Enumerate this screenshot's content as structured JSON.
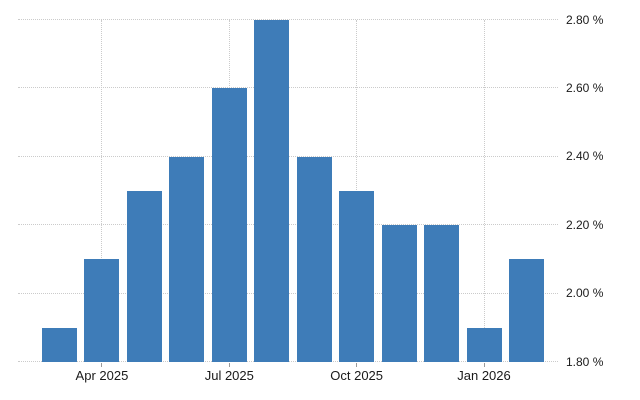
{
  "chart_data": {
    "type": "bar",
    "title": "",
    "values": [
      1.9,
      2.1,
      2.3,
      2.4,
      2.6,
      2.8,
      2.4,
      2.3,
      2.2,
      2.2,
      1.9,
      2.1
    ],
    "bar_count": 12,
    "unit": "%",
    "x_tick_labels": [
      {
        "bar_index": 1,
        "label": "Apr 2025"
      },
      {
        "bar_index": 4,
        "label": "Jul 2025"
      },
      {
        "bar_index": 7,
        "label": "Oct 2025"
      },
      {
        "bar_index": 10,
        "label": "Jan 2026"
      }
    ],
    "y_axis": {
      "side": "right",
      "min": 1.8,
      "max": 2.8,
      "tick_values": [
        2.8,
        2.6,
        2.4,
        2.2,
        2.0,
        1.8
      ],
      "tick_labels": [
        "2.80 %",
        "2.60 %",
        "2.40 %",
        "2.20 %",
        "2.00 %",
        "1.80 %"
      ]
    },
    "grid": {
      "horizontal": true,
      "vertical_at_x_ticks": true,
      "style": "dotted"
    },
    "legend": {
      "visible": false
    },
    "colors": {
      "bar": "#3e7cb8",
      "grid": "#cbcbcb",
      "tick": "#9a9a9a",
      "label": "#1a1a1a",
      "background": "#ffffff"
    }
  }
}
